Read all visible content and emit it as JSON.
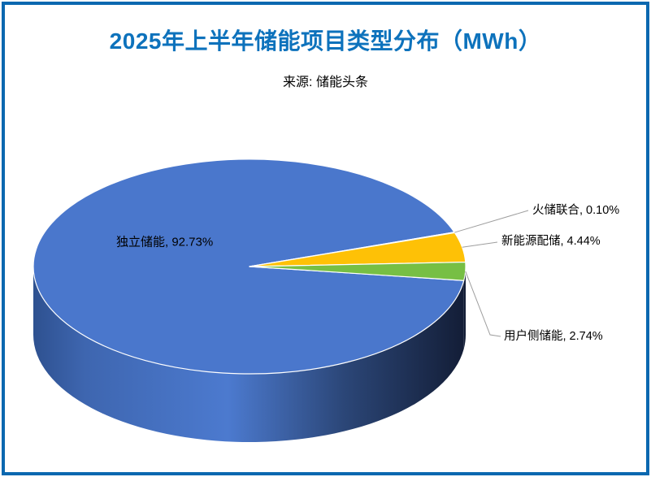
{
  "frame": {
    "border_color": "#0B68B0"
  },
  "header": {
    "title": "2025年上半年储能项目类型分布（MWh）",
    "title_color": "#0D72BC",
    "subtitle": "来源: 储能头条"
  },
  "chart_data": {
    "type": "pie",
    "is_3d": true,
    "title": "2025年上半年储能项目类型分布（MWh）",
    "source": "来源: 储能头条",
    "unit": "MWh (share %)",
    "legend_position": "none",
    "start_angle_deg": 97.5,
    "leader_line_color": "#9E9E9E",
    "slices": [
      {
        "label": "独立储能",
        "value": 92.73,
        "display": "独立储能, 92.73%",
        "color": "#4A77CC"
      },
      {
        "label": "火储联合",
        "value": 0.1,
        "display": "火储联合, 0.10%",
        "color": "#ED7D31"
      },
      {
        "label": "新能源配储",
        "value": 4.44,
        "display": "新能源配储, 4.44%",
        "color": "#FEC106"
      },
      {
        "label": "用户侧储能",
        "value": 2.74,
        "display": "用户侧储能, 2.74%",
        "color": "#77BF44"
      }
    ]
  }
}
